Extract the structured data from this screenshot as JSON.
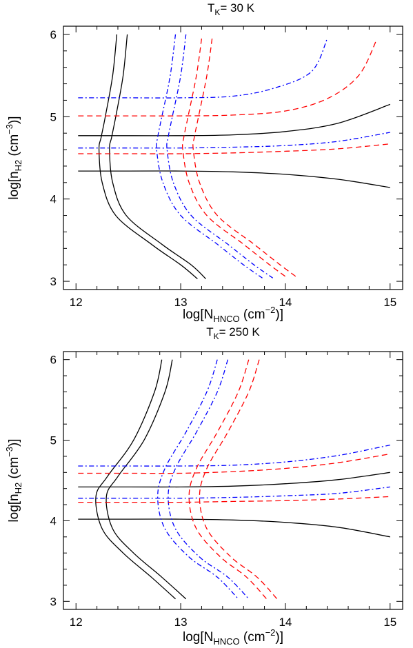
{
  "chart_data": [
    {
      "type": "line",
      "title": {
        "main": "T",
        "sub": "K",
        "rest": "= 30 K"
      },
      "xlabel": {
        "pre": "log[N",
        "sub": "HNCO",
        "mid": " (cm",
        "sup": "−2",
        "post": ")]"
      },
      "ylabel": {
        "pre": "log[n",
        "sub": "H2",
        "mid": " (cm",
        "sup": "−3",
        "post": ")]"
      },
      "xlim": [
        11.88,
        15.12
      ],
      "ylim": [
        2.9,
        6.1
      ],
      "xticks": [
        "12",
        "13",
        "14",
        "15"
      ],
      "yticks": [
        "3",
        "4",
        "5",
        "6"
      ],
      "grid": false,
      "series": [
        {
          "style": "solid",
          "color": "#000000",
          "points": [
            [
              12.39,
              6.0
            ],
            [
              12.35,
              5.5
            ],
            [
              12.28,
              5.0
            ],
            [
              12.24,
              4.75
            ],
            [
              12.22,
              4.6
            ],
            [
              12.25,
              4.2
            ],
            [
              12.38,
              3.8
            ],
            [
              12.72,
              3.45
            ],
            [
              13.0,
              3.2
            ],
            [
              13.16,
              3.03
            ]
          ]
        },
        {
          "style": "solid",
          "color": "#000000",
          "points": [
            [
              12.49,
              6.0
            ],
            [
              12.45,
              5.5
            ],
            [
              12.38,
              5.0
            ],
            [
              12.34,
              4.75
            ],
            [
              12.32,
              4.6
            ],
            [
              12.35,
              4.2
            ],
            [
              12.48,
              3.8
            ],
            [
              12.82,
              3.45
            ],
            [
              13.1,
              3.2
            ],
            [
              13.24,
              3.03
            ]
          ]
        },
        {
          "style": "solid",
          "color": "#000000",
          "points": [
            [
              12.02,
              4.77
            ],
            [
              12.5,
              4.77
            ],
            [
              13.0,
              4.77
            ],
            [
              13.5,
              4.78
            ],
            [
              14.0,
              4.82
            ],
            [
              14.5,
              4.92
            ],
            [
              15.0,
              5.15
            ]
          ]
        },
        {
          "style": "solid",
          "color": "#000000",
          "points": [
            [
              12.02,
              4.34
            ],
            [
              12.5,
              4.34
            ],
            [
              13.0,
              4.34
            ],
            [
              13.5,
              4.33
            ],
            [
              14.0,
              4.3
            ],
            [
              14.5,
              4.24
            ],
            [
              15.0,
              4.14
            ]
          ]
        },
        {
          "style": "dashdot",
          "color": "#0000ff",
          "points": [
            [
              12.95,
              6.0
            ],
            [
              12.9,
              5.5
            ],
            [
              12.82,
              5.0
            ],
            [
              12.78,
              4.75
            ],
            [
              12.77,
              4.6
            ],
            [
              12.83,
              4.2
            ],
            [
              13.0,
              3.8
            ],
            [
              13.35,
              3.45
            ],
            [
              13.6,
              3.2
            ],
            [
              13.78,
              3.04
            ]
          ]
        },
        {
          "style": "dashdot",
          "color": "#0000ff",
          "points": [
            [
              13.05,
              6.0
            ],
            [
              13.0,
              5.5
            ],
            [
              12.92,
              5.0
            ],
            [
              12.88,
              4.75
            ],
            [
              12.87,
              4.6
            ],
            [
              12.93,
              4.2
            ],
            [
              13.1,
              3.8
            ],
            [
              13.45,
              3.45
            ],
            [
              13.7,
              3.2
            ],
            [
              13.88,
              3.04
            ]
          ]
        },
        {
          "style": "dashdot",
          "color": "#0000ff",
          "points": [
            [
              12.02,
              5.23
            ],
            [
              12.5,
              5.23
            ],
            [
              13.0,
              5.23
            ],
            [
              13.5,
              5.25
            ],
            [
              13.9,
              5.35
            ],
            [
              14.25,
              5.55
            ],
            [
              14.4,
              5.95
            ]
          ]
        },
        {
          "style": "dashdot",
          "color": "#0000ff",
          "points": [
            [
              12.02,
              4.62
            ],
            [
              12.5,
              4.62
            ],
            [
              13.0,
              4.62
            ],
            [
              13.5,
              4.63
            ],
            [
              14.0,
              4.65
            ],
            [
              14.5,
              4.7
            ],
            [
              15.0,
              4.81
            ]
          ]
        },
        {
          "style": "dashed",
          "color": "#ff0000",
          "points": [
            [
              13.2,
              5.95
            ],
            [
              13.15,
              5.5
            ],
            [
              13.07,
              5.0
            ],
            [
              13.03,
              4.75
            ],
            [
              13.02,
              4.6
            ],
            [
              13.08,
              4.2
            ],
            [
              13.25,
              3.8
            ],
            [
              13.6,
              3.45
            ],
            [
              13.85,
              3.2
            ],
            [
              14.02,
              3.04
            ]
          ]
        },
        {
          "style": "dashed",
          "color": "#ff0000",
          "points": [
            [
              13.3,
              5.95
            ],
            [
              13.25,
              5.5
            ],
            [
              13.17,
              5.0
            ],
            [
              13.13,
              4.75
            ],
            [
              13.12,
              4.6
            ],
            [
              13.18,
              4.2
            ],
            [
              13.35,
              3.8
            ],
            [
              13.7,
              3.45
            ],
            [
              13.95,
              3.2
            ],
            [
              14.12,
              3.04
            ]
          ]
        },
        {
          "style": "dashed",
          "color": "#ff0000",
          "points": [
            [
              12.02,
              5.01
            ],
            [
              12.5,
              5.01
            ],
            [
              13.0,
              5.01
            ],
            [
              13.5,
              5.02
            ],
            [
              14.0,
              5.07
            ],
            [
              14.4,
              5.22
            ],
            [
              14.7,
              5.5
            ],
            [
              14.87,
              5.93
            ]
          ]
        },
        {
          "style": "dashed",
          "color": "#ff0000",
          "points": [
            [
              12.02,
              4.55
            ],
            [
              12.5,
              4.55
            ],
            [
              13.0,
              4.55
            ],
            [
              13.5,
              4.56
            ],
            [
              14.0,
              4.58
            ],
            [
              14.5,
              4.61
            ],
            [
              15.0,
              4.67
            ]
          ]
        }
      ]
    },
    {
      "type": "line",
      "title": {
        "main": "T",
        "sub": "K",
        "rest": "= 250 K"
      },
      "xlabel": {
        "pre": "log[N",
        "sub": "HNCO",
        "mid": " (cm",
        "sup": "−2",
        "post": ")]"
      },
      "ylabel": {
        "pre": "log[n",
        "sub": "H2",
        "mid": " (cm",
        "sup": "−3",
        "post": ")]"
      },
      "xlim": [
        11.88,
        15.12
      ],
      "ylim": [
        2.9,
        6.1
      ],
      "xticks": [
        "12",
        "13",
        "14",
        "15"
      ],
      "yticks": [
        "3",
        "4",
        "5",
        "6"
      ],
      "grid": false,
      "series": [
        {
          "style": "solid",
          "color": "#000000",
          "points": [
            [
              12.82,
              6.0
            ],
            [
              12.75,
              5.6
            ],
            [
              12.55,
              5.0
            ],
            [
              12.3,
              4.55
            ],
            [
              12.19,
              4.3
            ],
            [
              12.25,
              3.9
            ],
            [
              12.45,
              3.6
            ],
            [
              12.72,
              3.3
            ],
            [
              12.95,
              3.03
            ]
          ]
        },
        {
          "style": "solid",
          "color": "#000000",
          "points": [
            [
              12.92,
              6.0
            ],
            [
              12.85,
              5.6
            ],
            [
              12.65,
              5.0
            ],
            [
              12.4,
              4.55
            ],
            [
              12.29,
              4.3
            ],
            [
              12.35,
              3.9
            ],
            [
              12.55,
              3.6
            ],
            [
              12.82,
              3.3
            ],
            [
              13.05,
              3.03
            ]
          ]
        },
        {
          "style": "solid",
          "color": "#000000",
          "points": [
            [
              12.02,
              4.42
            ],
            [
              12.5,
              4.42
            ],
            [
              13.0,
              4.42
            ],
            [
              13.5,
              4.43
            ],
            [
              14.0,
              4.46
            ],
            [
              14.5,
              4.51
            ],
            [
              15.0,
              4.6
            ]
          ]
        },
        {
          "style": "solid",
          "color": "#000000",
          "points": [
            [
              12.02,
              4.02
            ],
            [
              12.5,
              4.02
            ],
            [
              13.0,
              4.02
            ],
            [
              13.5,
              4.01
            ],
            [
              14.0,
              3.98
            ],
            [
              14.5,
              3.92
            ],
            [
              15.0,
              3.8
            ]
          ]
        },
        {
          "style": "dashdot",
          "color": "#0000ff",
          "points": [
            [
              13.35,
              6.0
            ],
            [
              13.25,
              5.6
            ],
            [
              13.05,
              5.1
            ],
            [
              12.85,
              4.65
            ],
            [
              12.78,
              4.3
            ],
            [
              12.85,
              3.9
            ],
            [
              13.08,
              3.55
            ],
            [
              13.35,
              3.3
            ],
            [
              13.55,
              3.03
            ]
          ]
        },
        {
          "style": "dashdot",
          "color": "#0000ff",
          "points": [
            [
              13.45,
              6.0
            ],
            [
              13.35,
              5.6
            ],
            [
              13.15,
              5.1
            ],
            [
              12.95,
              4.65
            ],
            [
              12.88,
              4.3
            ],
            [
              12.95,
              3.9
            ],
            [
              13.18,
              3.55
            ],
            [
              13.45,
              3.3
            ],
            [
              13.65,
              3.03
            ]
          ]
        },
        {
          "style": "dashdot",
          "color": "#0000ff",
          "points": [
            [
              12.02,
              4.68
            ],
            [
              12.5,
              4.68
            ],
            [
              13.0,
              4.68
            ],
            [
              13.5,
              4.69
            ],
            [
              14.0,
              4.73
            ],
            [
              14.5,
              4.81
            ],
            [
              15.0,
              4.94
            ]
          ]
        },
        {
          "style": "dashdot",
          "color": "#0000ff",
          "points": [
            [
              12.02,
              4.28
            ],
            [
              12.5,
              4.28
            ],
            [
              13.0,
              4.28
            ],
            [
              13.5,
              4.29
            ],
            [
              14.0,
              4.31
            ],
            [
              14.5,
              4.34
            ],
            [
              15.0,
              4.42
            ]
          ]
        },
        {
          "style": "dashed",
          "color": "#ff0000",
          "points": [
            [
              13.65,
              6.0
            ],
            [
              13.55,
              5.6
            ],
            [
              13.35,
              5.1
            ],
            [
              13.15,
              4.65
            ],
            [
              13.08,
              4.3
            ],
            [
              13.15,
              3.9
            ],
            [
              13.38,
              3.55
            ],
            [
              13.63,
              3.3
            ],
            [
              13.82,
              3.03
            ]
          ]
        },
        {
          "style": "dashed",
          "color": "#ff0000",
          "points": [
            [
              13.75,
              6.0
            ],
            [
              13.65,
              5.6
            ],
            [
              13.45,
              5.1
            ],
            [
              13.25,
              4.65
            ],
            [
              13.18,
              4.3
            ],
            [
              13.25,
              3.9
            ],
            [
              13.48,
              3.55
            ],
            [
              13.73,
              3.3
            ],
            [
              13.92,
              3.03
            ]
          ]
        },
        {
          "style": "dashed",
          "color": "#ff0000",
          "points": [
            [
              12.02,
              4.59
            ],
            [
              12.5,
              4.59
            ],
            [
              13.0,
              4.59
            ],
            [
              13.5,
              4.61
            ],
            [
              14.0,
              4.65
            ],
            [
              14.5,
              4.72
            ],
            [
              15.0,
              4.83
            ]
          ]
        },
        {
          "style": "dashed",
          "color": "#ff0000",
          "points": [
            [
              12.02,
              4.23
            ],
            [
              12.5,
              4.23
            ],
            [
              13.0,
              4.23
            ],
            [
              13.5,
              4.24
            ],
            [
              14.0,
              4.25
            ],
            [
              14.5,
              4.27
            ],
            [
              15.0,
              4.3
            ]
          ]
        }
      ]
    }
  ]
}
